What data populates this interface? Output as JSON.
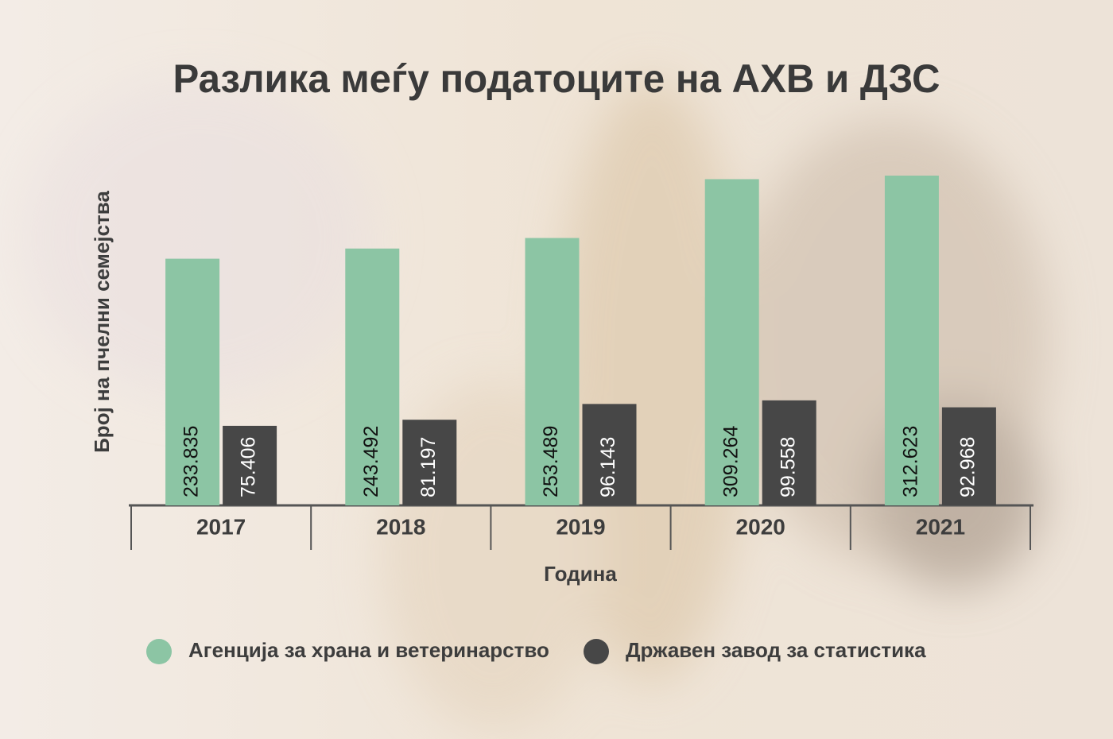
{
  "chart_data": {
    "type": "bar",
    "title": "Разлика меѓу податоците на АХВ и ДЗС",
    "x_label": "Година",
    "y_label": "Број на пчелни семејства",
    "categories": [
      "2017",
      "2018",
      "2019",
      "2020",
      "2021"
    ],
    "series": [
      {
        "name": "Агенција за храна и ветеринарство",
        "color": "#8cc5a4",
        "values": [
          233835,
          243492,
          253489,
          309264,
          312623
        ],
        "value_labels": [
          "233.835",
          "243.492",
          "253.489",
          "309.264",
          "312.623"
        ]
      },
      {
        "name": "Државен завод за статистика",
        "color": "#474747",
        "values": [
          75406,
          81197,
          96143,
          99558,
          92968
        ],
        "value_labels": [
          "75.406",
          "81.197",
          "96.143",
          "99.558",
          "92.968"
        ]
      }
    ],
    "legend": "bottom"
  }
}
